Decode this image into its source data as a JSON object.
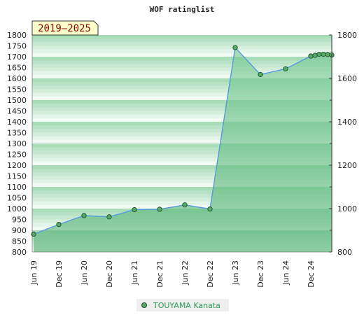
{
  "chart_data": {
    "type": "area",
    "title": "WOF ratinglist",
    "badge": "2019–2025",
    "x_ticks": [
      "Jun 19",
      "Dec 19",
      "Jun 20",
      "Dec 20",
      "Jun 21",
      "Dec 21",
      "Jun 22",
      "Dec 22",
      "Jun 23",
      "Dec 23",
      "Jun 24",
      "Dec 24"
    ],
    "x_range": [
      "2019-06",
      "2025-04"
    ],
    "left_axis": {
      "ticks": [
        800,
        850,
        900,
        950,
        1000,
        1050,
        1100,
        1150,
        1200,
        1250,
        1300,
        1350,
        1400,
        1450,
        1500,
        1550,
        1600,
        1650,
        1700,
        1750,
        1800
      ],
      "range": [
        800,
        1800
      ]
    },
    "right_axis": {
      "ticks": [
        800,
        1000,
        1200,
        1400,
        1600,
        1800
      ],
      "range": [
        800,
        1800
      ]
    },
    "series": [
      {
        "name": "TOUYAMA Kanata",
        "points": [
          [
            "2019-06",
            882
          ],
          [
            "2019-12",
            927
          ],
          [
            "2020-06",
            968
          ],
          [
            "2020-12",
            962
          ],
          [
            "2021-06",
            995
          ],
          [
            "2021-12",
            997
          ],
          [
            "2022-06",
            1017
          ],
          [
            "2022-12",
            998
          ],
          [
            "2023-06",
            1742
          ],
          [
            "2023-12",
            1618
          ],
          [
            "2024-06",
            1644
          ],
          [
            "2024-12",
            1703
          ],
          [
            "2025-01",
            1706
          ],
          [
            "2025-02",
            1711
          ],
          [
            "2025-03",
            1711
          ],
          [
            "2025-04",
            1710
          ],
          [
            "2025-05",
            1708
          ]
        ]
      }
    ],
    "colors": {
      "line": "#5599dd",
      "marker_fill": "#55aa66",
      "marker_stroke": "#1f4f2a",
      "area_fill": "#6fc08a",
      "band_dark": "#a9dcb9",
      "band_light": "#eef8f1",
      "badge_bg": "#ffffcc",
      "legend_text": "#2e9e5a"
    },
    "grid": "horizontal bands",
    "legend_position": "bottom-center"
  }
}
